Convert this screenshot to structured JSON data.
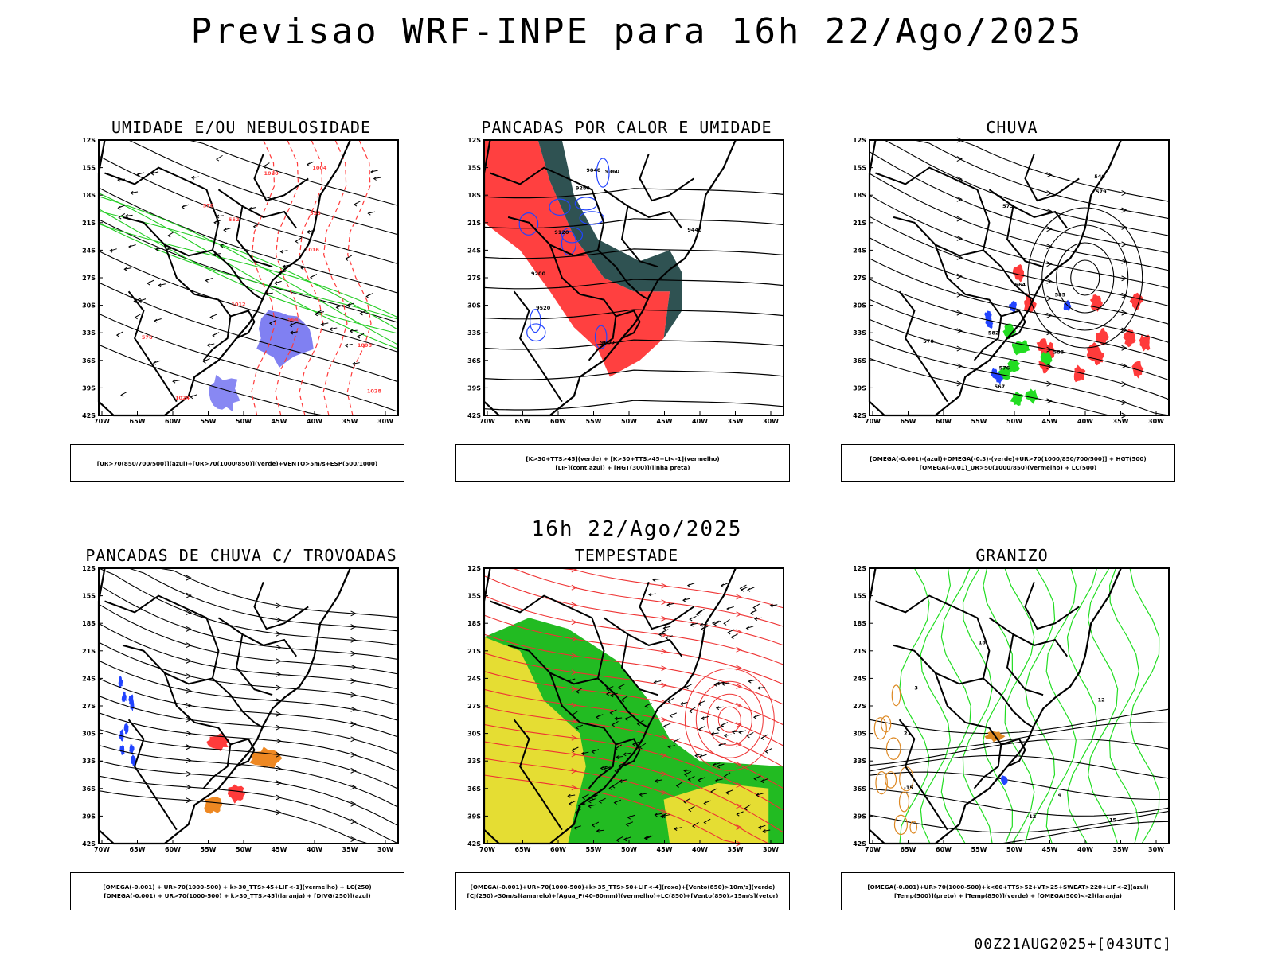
{
  "title": "Previsao WRF-INPE  para 16h 22/Ago/2025",
  "subtitle": "16h 22/Ago/2025",
  "footer": "00Z21AUG2025+[043UTC]",
  "axes": {
    "lat_labels": [
      "12S",
      "15S",
      "18S",
      "21S",
      "24S",
      "27S",
      "30S",
      "33S",
      "36S",
      "39S",
      "42S"
    ],
    "lon_labels": [
      "70W",
      "65W",
      "60W",
      "55W",
      "50W",
      "45W",
      "40W",
      "35W",
      "30W"
    ]
  },
  "panels": [
    {
      "title": "UMIDADE E/OU NEBULOSIDADE",
      "legend": [
        "[UR>70(850/700/500)](azul)+[UR>70(1000/850)](verde)+VENTO>5m/s+ESP(500/1000)"
      ],
      "contour_labels": [
        "1008",
        "1016",
        "1012",
        "1020",
        "1024",
        "1028",
        "576",
        "570",
        "564",
        "558",
        "552",
        "1004"
      ],
      "colors": {
        "primary": "#ff3b3b",
        "secondary": "#22cc22",
        "fill": "#5555ee"
      }
    },
    {
      "title": "PANCADAS POR CALOR E UMIDADE",
      "legend": [
        "[K>30+TTS>45](verde) + [K>30+TTS>45+LI<-1](vermelho)",
        "[LIF](cont.azul) + [HGT(300)](linha preta)"
      ],
      "contour_labels": [
        "9600",
        "9520",
        "9440",
        "9360",
        "9280",
        "9200",
        "9120",
        "9040"
      ],
      "colors": {
        "primary": "#ff4040",
        "secondary": "#2f5252",
        "fill": "#2244ff"
      }
    },
    {
      "title": "CHUVA",
      "legend": [
        "[OMEGA(-0.001)-(azul)+OMEGA(-0.3)-(verde)+UR>70(1000/850/700/500)] + HGT(500)",
        "[OMEGA(-0.01)_UR>50(1000/850)(vermelho) + LC(500)"
      ],
      "contour_labels": [
        "588",
        "585",
        "582",
        "579",
        "576",
        "573",
        "570",
        "567",
        "564",
        "540"
      ],
      "colors": {
        "primary": "#ff3b3b",
        "secondary": "#22dd22",
        "fill": "#2244ff"
      }
    },
    {
      "title": "PANCADAS DE CHUVA C/ TROVOADAS",
      "legend": [
        "[OMEGA(-0.001) + UR>70(1000-500) + k>30_TTS>45+LIF<-1](vermelho) + LC(250)",
        "[OMEGA(-0.001) + UR>70(1000-500) + k>30_TTS>45](laranja) + [DIVG(250)](azul)"
      ],
      "contour_labels": [],
      "colors": {
        "primary": "#ff3b3b",
        "secondary": "#ee8822",
        "fill": "#2244ff"
      }
    },
    {
      "title": "TEMPESTADE",
      "legend": [
        "[OMEGA(-0.001)+UR>70(1000-500)+k>35_TTS>50+LIF<-4](roxo)+[Vento(850)>10m/s](verde)",
        "[CJ(250)>30m/s](amarelo)+[Agua_P(40-60mm)](vermelho)+LC(850)+[Vento(850)>15m/s](vetor)"
      ],
      "contour_labels": [],
      "colors": {
        "primary": "#ee3333",
        "secondary": "#22bb22",
        "fill": "#e5dd33"
      }
    },
    {
      "title": "GRANIZO",
      "legend": [
        "[OMEGA(-0.001)+UR>70(1000-500)+k<60+TTS>52+VT>25+SWEAT>220+LIF<-2](azul)",
        "[Temp(500)](preto) + [Temp(850)](verde) + [OMEGA(500)<-2](laranja)"
      ],
      "contour_labels": [
        "12",
        "15",
        "18",
        "21",
        "3",
        "9",
        "-12",
        "-15"
      ],
      "colors": {
        "primary": "#22dd22",
        "secondary": "#dd8822",
        "fill": "#2244ff"
      }
    }
  ]
}
